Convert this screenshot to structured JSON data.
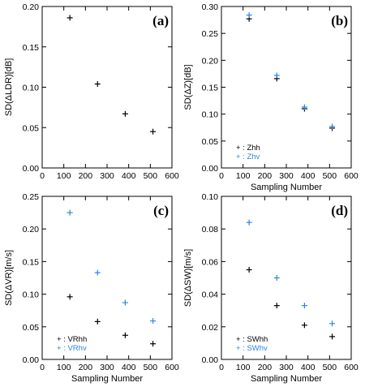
{
  "chart_data": [
    {
      "type": "scatter",
      "panel_label": "(a)",
      "xlabel": "",
      "ylabel": "SD(ΔLDR)[dB]",
      "xlim": [
        0,
        600
      ],
      "ylim": [
        0,
        0.2
      ],
      "xticks": [
        "0",
        "100",
        "200",
        "300",
        "400",
        "500",
        "600"
      ],
      "yticks": [
        "0.00",
        "0.05",
        "0.10",
        "0.15",
        "0.20"
      ],
      "grid": false,
      "legend": [],
      "series": [
        {
          "color": "#000000",
          "x": [
            128,
            256,
            384,
            512
          ],
          "y": [
            0.186,
            0.104,
            0.067,
            0.045
          ]
        }
      ]
    },
    {
      "type": "scatter",
      "panel_label": "(b)",
      "xlabel": "Sampling Number",
      "ylabel": "SD(ΔZ)[dB]",
      "xlim": [
        0,
        600
      ],
      "ylim": [
        0,
        0.3
      ],
      "xticks": [
        "0",
        "100",
        "200",
        "300",
        "400",
        "500",
        "600"
      ],
      "yticks": [
        "0.00",
        "0.05",
        "0.10",
        "0.15",
        "0.20",
        "0.25",
        "0.30"
      ],
      "grid": false,
      "legend": [
        "+ : Zhh",
        "+ : Zhv"
      ],
      "series": [
        {
          "name": "Zhh",
          "color": "#000000",
          "x": [
            128,
            256,
            384,
            512
          ],
          "y": [
            0.277,
            0.166,
            0.11,
            0.074
          ]
        },
        {
          "name": "Zhv",
          "color": "#2e86de",
          "x": [
            128,
            256,
            384,
            512
          ],
          "y": [
            0.284,
            0.172,
            0.113,
            0.077
          ]
        }
      ]
    },
    {
      "type": "scatter",
      "panel_label": "(c)",
      "xlabel": "Sampling Number",
      "ylabel": "SD(ΔVR)[m/s]",
      "xlim": [
        0,
        600
      ],
      "ylim": [
        0,
        0.25
      ],
      "xticks": [
        "0",
        "100",
        "200",
        "300",
        "400",
        "500",
        "600"
      ],
      "yticks": [
        "0.00",
        "0.05",
        "0.10",
        "0.15",
        "0.20",
        "0.25"
      ],
      "grid": false,
      "legend": [
        "+ : VRhh",
        "+ : VRhv"
      ],
      "series": [
        {
          "name": "VRhh",
          "color": "#000000",
          "x": [
            128,
            256,
            384,
            512
          ],
          "y": [
            0.096,
            0.058,
            0.037,
            0.024
          ]
        },
        {
          "name": "VRhv",
          "color": "#2e86de",
          "x": [
            128,
            256,
            384,
            512
          ],
          "y": [
            0.225,
            0.133,
            0.087,
            0.059
          ]
        }
      ]
    },
    {
      "type": "scatter",
      "panel_label": "(d)",
      "xlabel": "Sampling Number",
      "ylabel": "SD(ΔSW)[m/s]",
      "xlim": [
        0,
        600
      ],
      "ylim": [
        0,
        0.1
      ],
      "xticks": [
        "0",
        "100",
        "200",
        "300",
        "400",
        "500",
        "600"
      ],
      "yticks": [
        "0.00",
        "0.02",
        "0.04",
        "0.06",
        "0.08",
        "0.10"
      ],
      "grid": false,
      "legend": [
        "+ : SWhh",
        "+ : SWhv"
      ],
      "series": [
        {
          "name": "SWhh",
          "color": "#000000",
          "x": [
            128,
            256,
            384,
            512
          ],
          "y": [
            0.055,
            0.033,
            0.021,
            0.014
          ]
        },
        {
          "name": "SWhv",
          "color": "#2e86de",
          "x": [
            128,
            256,
            384,
            512
          ],
          "y": [
            0.084,
            0.05,
            0.033,
            0.022
          ]
        }
      ]
    }
  ]
}
